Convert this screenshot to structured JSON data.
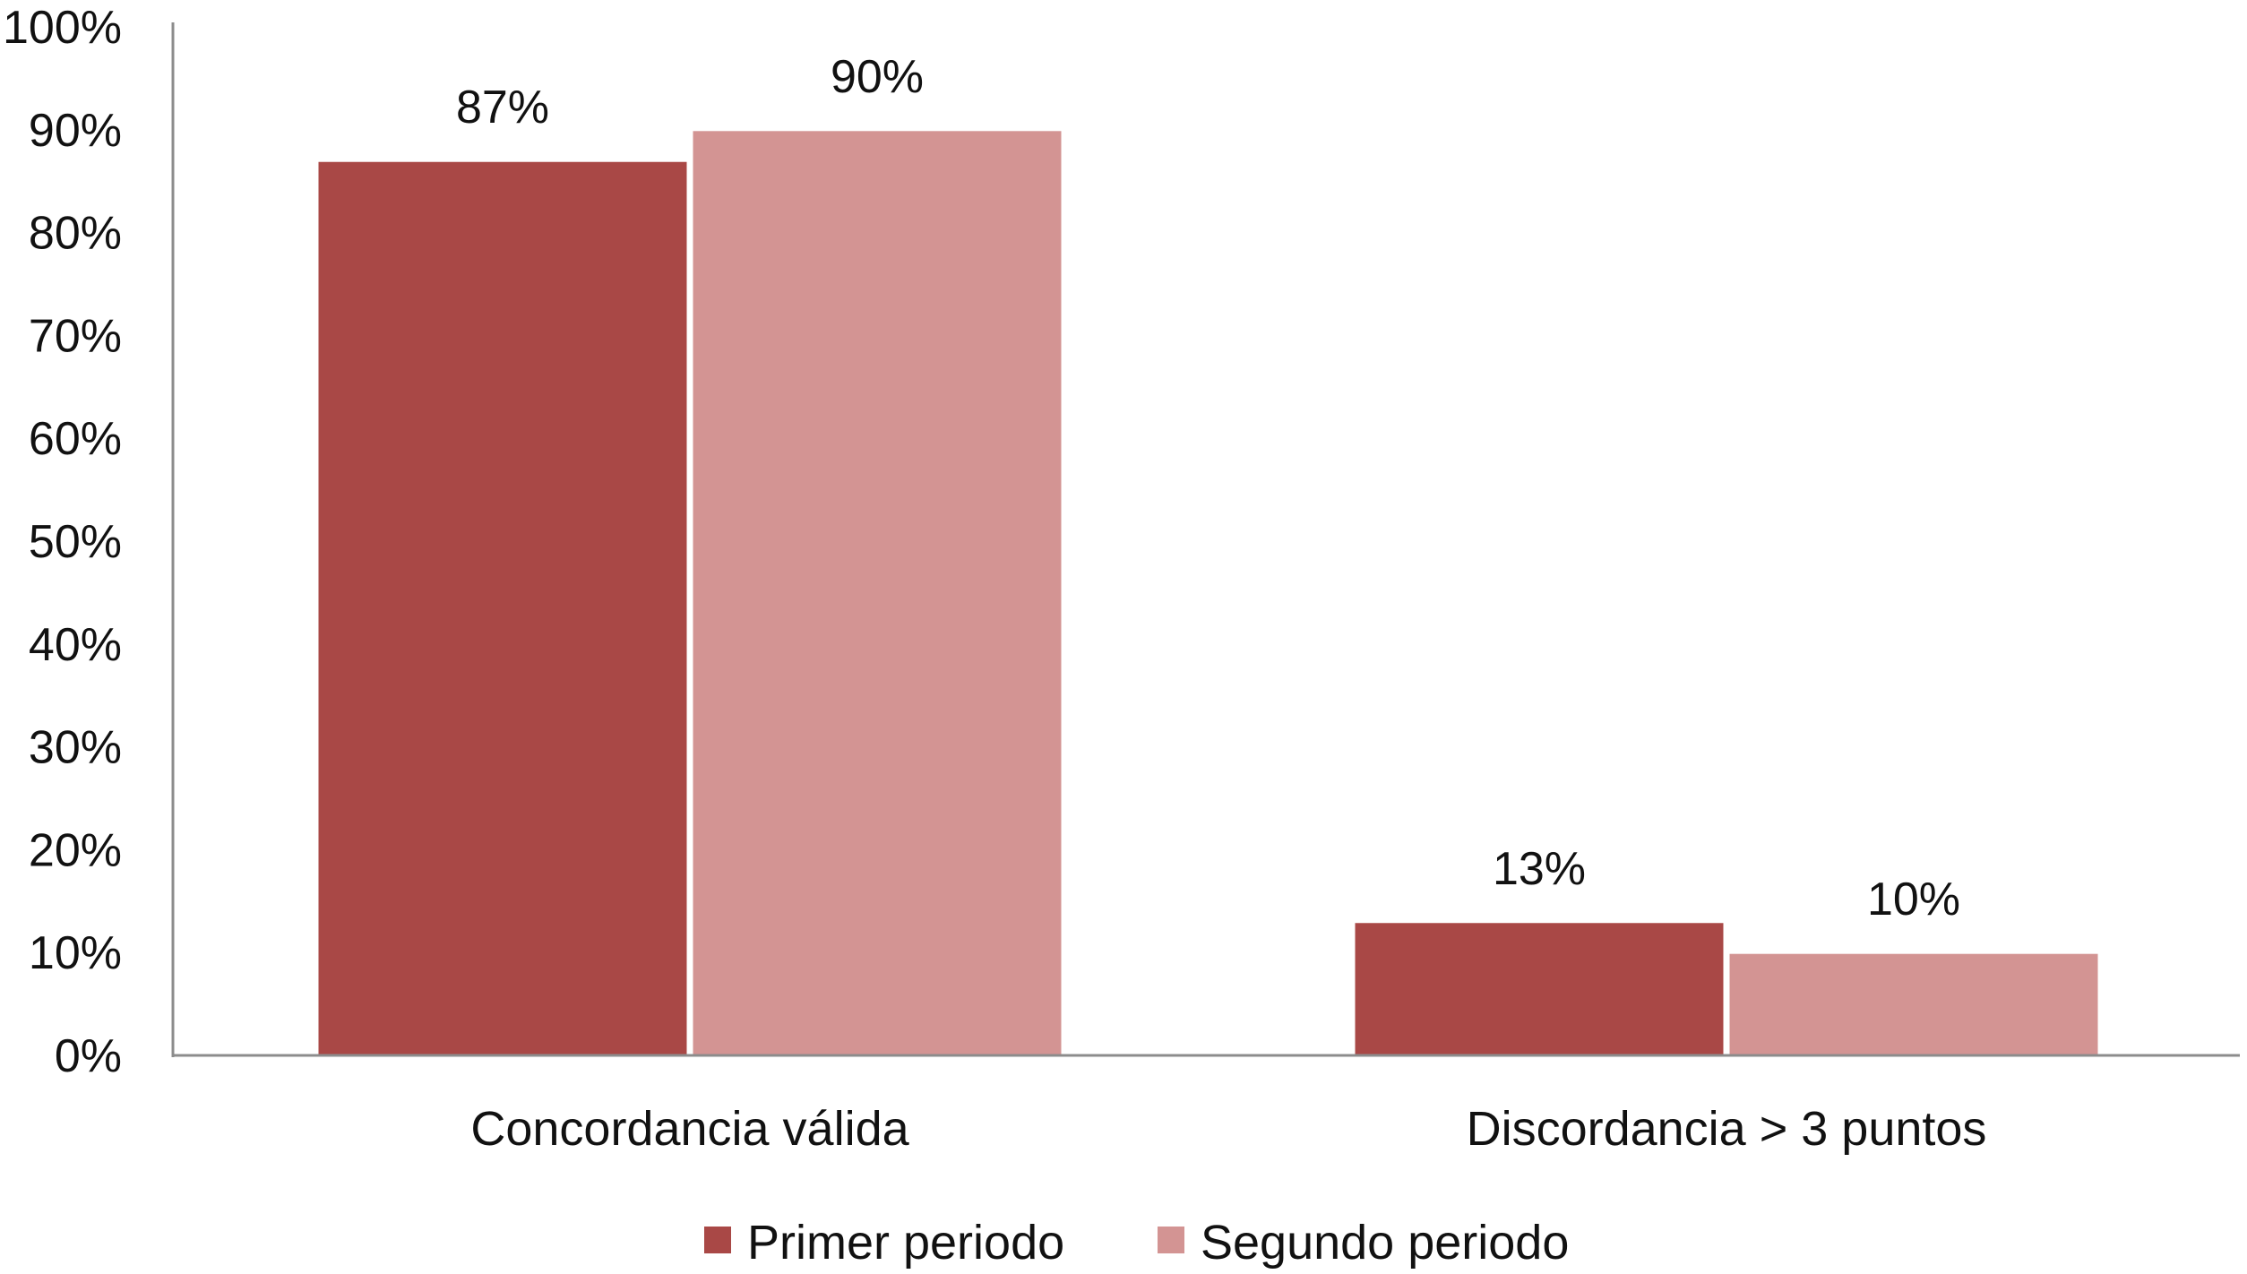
{
  "chart_data": {
    "type": "bar",
    "categories": [
      "Concordancia válida",
      "Discordancia > 3 puntos"
    ],
    "series": [
      {
        "name": "Primer periodo",
        "values": [
          87,
          13
        ],
        "labels": [
          "87%",
          "13%"
        ],
        "color": "#a94846"
      },
      {
        "name": "Segundo periodo",
        "values": [
          90,
          10
        ],
        "labels": [
          "90%",
          "10%"
        ],
        "color": "#d39493"
      }
    ],
    "ylim": [
      0,
      100
    ],
    "yticks": [
      0,
      10,
      20,
      30,
      40,
      50,
      60,
      70,
      80,
      90,
      100
    ],
    "ytick_labels": [
      "0%",
      "10%",
      "20%",
      "30%",
      "40%",
      "50%",
      "60%",
      "70%",
      "80%",
      "90%",
      "100%"
    ],
    "title": "",
    "xlabel": "",
    "ylabel": "",
    "grid": false,
    "legend_position": "bottom",
    "axis_color": "#8c8c8c"
  }
}
